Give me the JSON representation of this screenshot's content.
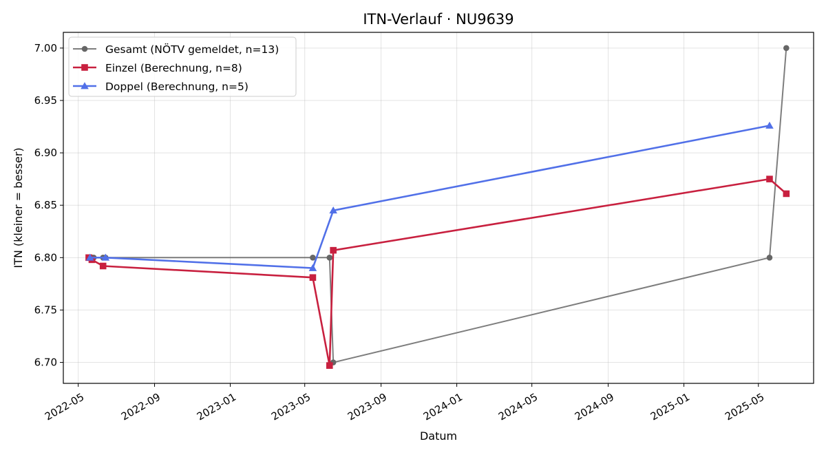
{
  "chart_data": {
    "type": "line",
    "title": "ITN-Verlauf · NU9639",
    "xlabel": "Datum",
    "ylabel": "ITN  (kleiner = besser)",
    "xlim": [
      "2022-04-07",
      "2025-07-29"
    ],
    "ylim": [
      6.68,
      7.015
    ],
    "x_ticks": [
      "2022-05",
      "2022-09",
      "2023-01",
      "2023-05",
      "2023-09",
      "2024-01",
      "2024-05",
      "2024-09",
      "2025-01",
      "2025-05"
    ],
    "x_tick_dates": [
      "2022-05-01",
      "2022-09-01",
      "2023-01-01",
      "2023-05-01",
      "2023-09-01",
      "2024-01-01",
      "2024-05-01",
      "2024-09-01",
      "2025-01-01",
      "2025-05-01"
    ],
    "y_ticks": [
      "6.70",
      "6.75",
      "6.80",
      "6.85",
      "6.90",
      "6.95",
      "7.00"
    ],
    "grid": true,
    "legend_position": "top-left",
    "series": [
      {
        "name": "Gesamt (NÖTV gemeldet, n=13)",
        "color": "#666666",
        "marker": "circle",
        "points": [
          {
            "x": "2022-05-18",
            "y": 6.8
          },
          {
            "x": "2022-05-20",
            "y": 6.8
          },
          {
            "x": "2022-05-22",
            "y": 6.8
          },
          {
            "x": "2022-05-24",
            "y": 6.8
          },
          {
            "x": "2022-05-26",
            "y": 6.8
          },
          {
            "x": "2022-06-10",
            "y": 6.8
          },
          {
            "x": "2022-06-14",
            "y": 6.8
          },
          {
            "x": "2023-05-14",
            "y": 6.8
          },
          {
            "x": "2023-06-10",
            "y": 6.8
          },
          {
            "x": "2023-06-16",
            "y": 6.7
          },
          {
            "x": "2025-05-19",
            "y": 6.8
          },
          {
            "x": "2025-06-15",
            "y": 7.0
          }
        ]
      },
      {
        "name": "Einzel (Berechnung, n=8)",
        "color": "#c8203f",
        "marker": "square",
        "points": [
          {
            "x": "2022-05-18",
            "y": 6.8
          },
          {
            "x": "2022-05-23",
            "y": 6.798
          },
          {
            "x": "2022-06-10",
            "y": 6.792
          },
          {
            "x": "2023-05-14",
            "y": 6.781
          },
          {
            "x": "2023-06-10",
            "y": 6.697
          },
          {
            "x": "2023-06-16",
            "y": 6.807
          },
          {
            "x": "2025-05-19",
            "y": 6.875
          },
          {
            "x": "2025-06-15",
            "y": 6.861
          }
        ]
      },
      {
        "name": "Doppel (Berechnung, n=5)",
        "color": "#5170e8",
        "marker": "triangle",
        "points": [
          {
            "x": "2022-05-20",
            "y": 6.8
          },
          {
            "x": "2022-06-14",
            "y": 6.8
          },
          {
            "x": "2023-05-14",
            "y": 6.79
          },
          {
            "x": "2023-06-16",
            "y": 6.845
          },
          {
            "x": "2025-05-19",
            "y": 6.926
          }
        ]
      }
    ]
  }
}
